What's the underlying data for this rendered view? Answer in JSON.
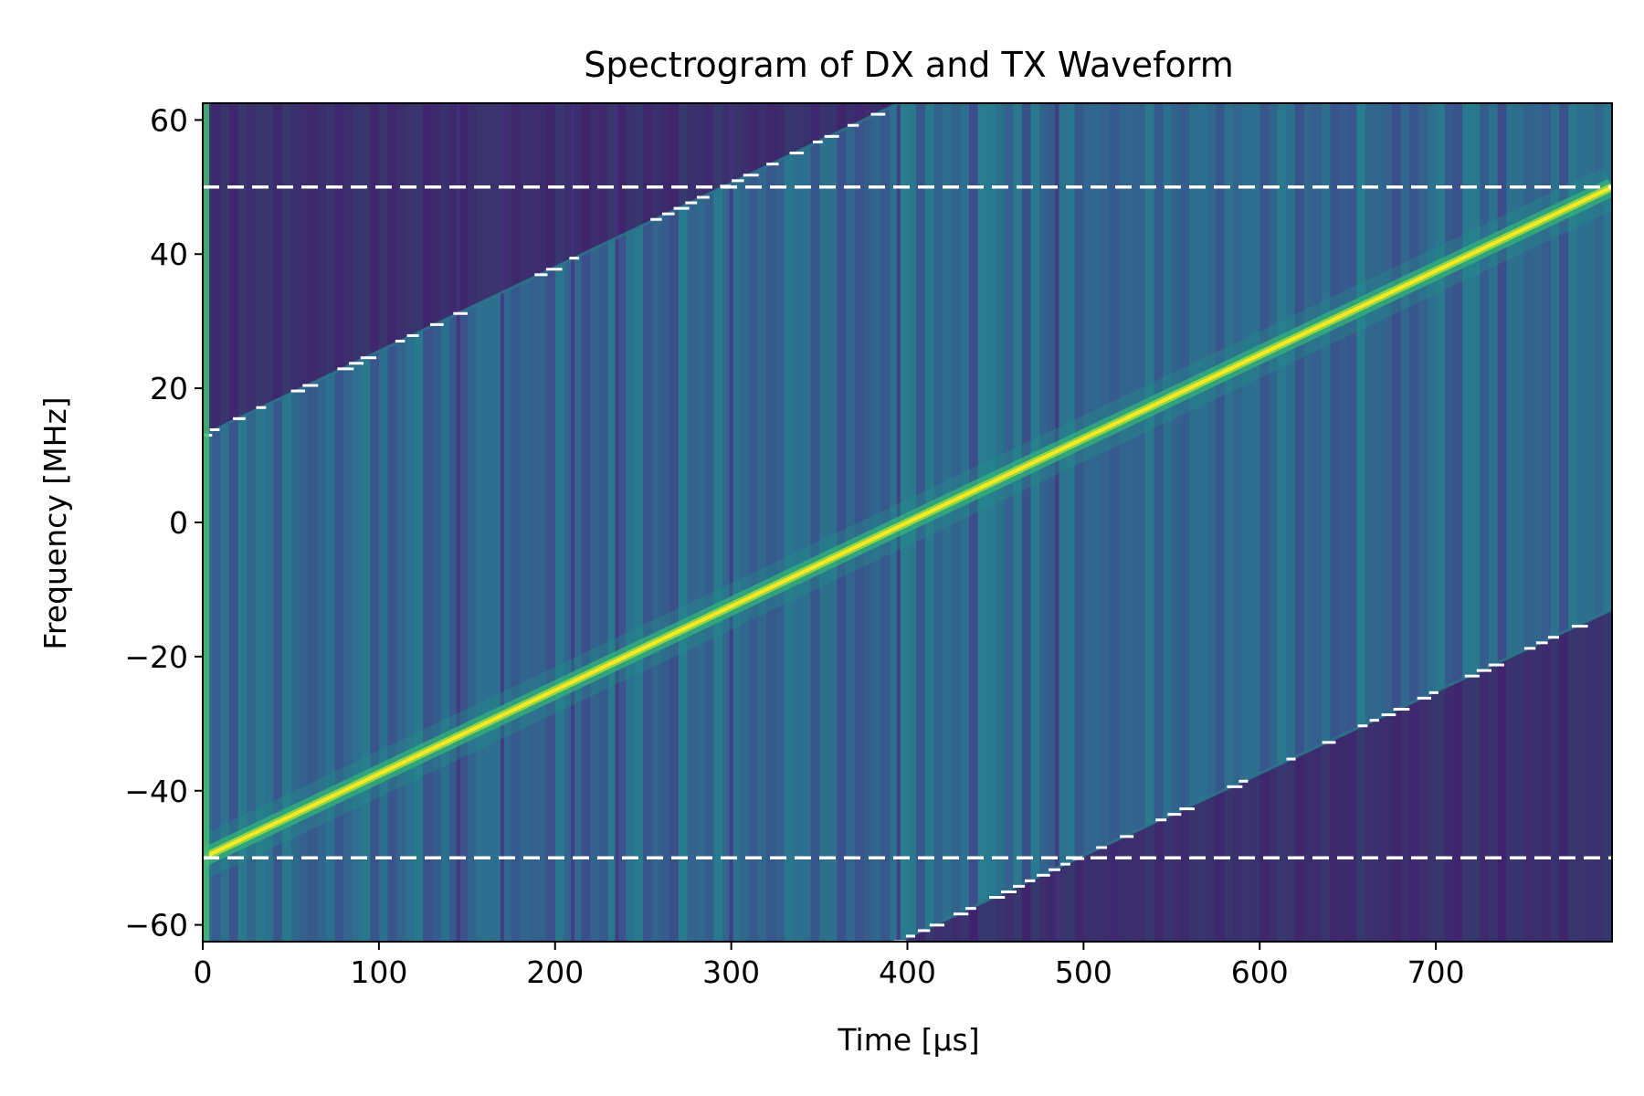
{
  "chart_data": {
    "type": "heatmap",
    "title": "Spectrogram of DX and TX Waveform",
    "xlabel": "Time [µs]",
    "ylabel": "Frequency [MHz]",
    "xlim": [
      0,
      800
    ],
    "ylim": [
      -62.5,
      62.5
    ],
    "xticks": [
      0,
      100,
      200,
      300,
      400,
      500,
      600,
      700
    ],
    "yticks": [
      -60,
      -40,
      -20,
      0,
      20,
      40,
      60
    ],
    "xtick_labels": [
      "0",
      "100",
      "200",
      "300",
      "400",
      "500",
      "600",
      "700"
    ],
    "ytick_labels": [
      "−60",
      "−40",
      "−20",
      "0",
      "20",
      "40",
      "60"
    ],
    "colormap": "viridis",
    "grid": false,
    "series": [
      {
        "role": "main-chirp",
        "x": [
          0,
          800
        ],
        "y": [
          -50,
          50
        ]
      },
      {
        "role": "upper-alias-chirp",
        "x": [
          0,
          395
        ],
        "y": [
          13,
          62.5
        ]
      },
      {
        "role": "lower-alias-chirp",
        "x": [
          395,
          800
        ],
        "y": [
          -62.5,
          -13
        ]
      }
    ],
    "reference_lines": [
      {
        "orientation": "horizontal",
        "y": 50,
        "style": "dashed",
        "color": "#ffffff"
      },
      {
        "orientation": "horizontal",
        "y": -50,
        "style": "dashed",
        "color": "#ffffff"
      }
    ],
    "dark_bands_x": [
      145,
      170,
      210,
      235,
      300,
      395,
      485
    ],
    "colors": {
      "background": "#2d6e8e",
      "low": "#440154",
      "mid": "#21918c",
      "high": "#fde725"
    }
  }
}
